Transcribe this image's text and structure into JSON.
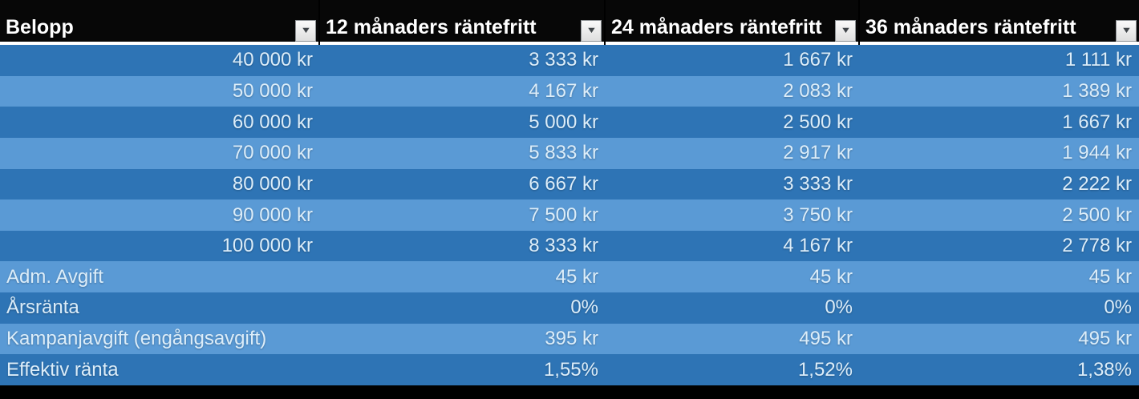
{
  "table": {
    "columns": [
      {
        "label": "Belopp"
      },
      {
        "label": "12 månaders räntefritt"
      },
      {
        "label": "24 månaders räntefritt"
      },
      {
        "label": "36 månaders räntefritt"
      }
    ],
    "rows": [
      {
        "shade": "dark",
        "first_align": "right",
        "cells": [
          "40 000 kr",
          "3 333 kr",
          "1 667 kr",
          "1 111 kr"
        ]
      },
      {
        "shade": "light",
        "first_align": "right",
        "cells": [
          "50 000 kr",
          "4 167 kr",
          "2 083 kr",
          "1 389 kr"
        ]
      },
      {
        "shade": "dark",
        "first_align": "right",
        "cells": [
          "60 000 kr",
          "5 000 kr",
          "2 500 kr",
          "1 667 kr"
        ]
      },
      {
        "shade": "light",
        "first_align": "right",
        "cells": [
          "70 000 kr",
          "5 833 kr",
          "2 917 kr",
          "1 944 kr"
        ]
      },
      {
        "shade": "dark",
        "first_align": "right",
        "cells": [
          "80 000 kr",
          "6 667 kr",
          "3 333 kr",
          "2 222 kr"
        ]
      },
      {
        "shade": "light",
        "first_align": "right",
        "cells": [
          "90 000 kr",
          "7 500 kr",
          "3 750 kr",
          "2 500 kr"
        ]
      },
      {
        "shade": "dark",
        "first_align": "right",
        "cells": [
          "100 000 kr",
          "8 333 kr",
          "4 167 kr",
          "2 778 kr"
        ]
      },
      {
        "shade": "light",
        "first_align": "left",
        "cells": [
          "Adm. Avgift",
          "45 kr",
          "45 kr",
          "45 kr"
        ]
      },
      {
        "shade": "dark",
        "first_align": "left",
        "cells": [
          "Årsränta",
          "0%",
          "0%",
          "0%"
        ]
      },
      {
        "shade": "light",
        "first_align": "left",
        "cells": [
          "Kampanjavgift (engångsavgift)",
          "395 kr",
          "495 kr",
          "495 kr"
        ]
      },
      {
        "shade": "dark",
        "first_align": "left",
        "cells": [
          "Effektiv ränta",
          "1,55%",
          "1,52%",
          "1,38%"
        ]
      }
    ],
    "filter_icon": "▼",
    "colors": {
      "row_dark": "#2e74b5",
      "row_light": "#5a9ad5",
      "header_bg": "#070707",
      "header_text": "#ffffff",
      "cell_text": "#dcedf9"
    }
  }
}
